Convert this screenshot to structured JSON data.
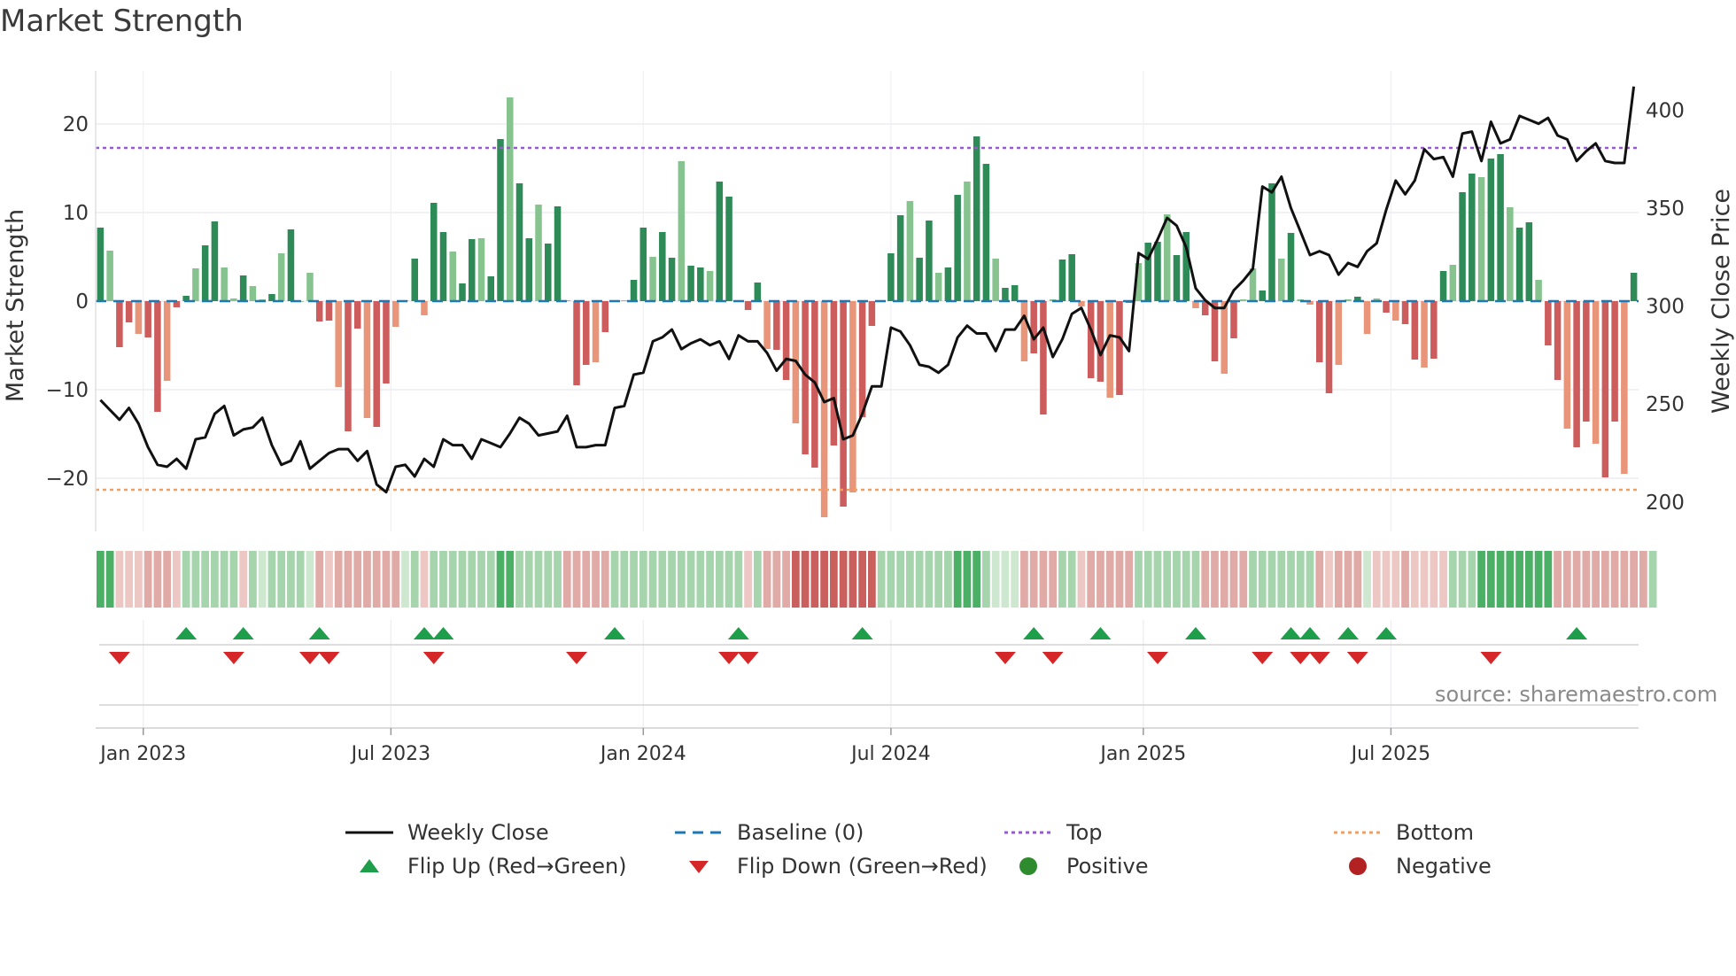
{
  "title": "Market Strength",
  "source_text": "source: sharemaestro.com",
  "colors": {
    "strong_green": "#2e8b57",
    "light_green": "#86c38e",
    "strong_red": "#cd5c5c",
    "light_red": "#e8957a",
    "price_line": "#111111",
    "baseline": "#1f77b4",
    "top_line": "#9b59d0",
    "bottom_line": "#f0a060",
    "flip_up": "#1e9e4a",
    "flip_down": "#d62728",
    "positive": "#2e8b2e",
    "negative": "#b22222"
  },
  "legend": [
    {
      "key": "weekly_close",
      "label": "Weekly Close"
    },
    {
      "key": "baseline",
      "label": "Baseline (0)"
    },
    {
      "key": "top",
      "label": "Top"
    },
    {
      "key": "bottom",
      "label": "Bottom"
    },
    {
      "key": "flip_up",
      "label": "Flip Up (Red→Green)"
    },
    {
      "key": "flip_down",
      "label": "Flip Down (Green→Red)"
    },
    {
      "key": "positive",
      "label": "Positive"
    },
    {
      "key": "negative",
      "label": "Negative"
    }
  ],
  "chart_data": {
    "type": "bar",
    "title": "Market Strength",
    "ylabel": "Market Strength",
    "y2label": "Weekly Close Price",
    "ylim": [
      -26,
      26
    ],
    "y2lim": [
      185,
      420
    ],
    "yticks": [
      20,
      10,
      0,
      -10,
      -20
    ],
    "ytick_labels": [
      "20",
      "10",
      "0",
      "−10",
      "−20"
    ],
    "y2ticks": [
      400,
      350,
      300,
      250,
      200
    ],
    "x_dates": {
      "start": "2022-11-28",
      "weeks": 157
    },
    "xticks": [
      {
        "label": "Jan 2023",
        "week": 5
      },
      {
        "label": "Jul 2023",
        "week": 31
      },
      {
        "label": "Jan 2024",
        "week": 57.5
      },
      {
        "label": "Jul 2024",
        "week": 83.5
      },
      {
        "label": "Jan 2025",
        "week": 110
      },
      {
        "label": "Jul 2025",
        "week": 136
      }
    ],
    "top_level": 17.3,
    "bottom_level": -21.3,
    "strength": [
      8.3,
      5.7,
      -5.2,
      -2.4,
      -3.7,
      -4.1,
      -12.5,
      -9,
      -0.7,
      0.6,
      3.7,
      6.3,
      9,
      3.8,
      0.3,
      2.9,
      1.7,
      0.2,
      0.8,
      5.4,
      8.1,
      0,
      3.2,
      -2.3,
      -2.2,
      -9.7,
      -14.7,
      -3.1,
      -13.2,
      -14.2,
      -9.3,
      -2.9,
      0.1,
      4.8,
      -1.6,
      11.1,
      7.8,
      5.6,
      2,
      7,
      7.1,
      2.8,
      18.3,
      23,
      13.3,
      7.1,
      10.9,
      6.5,
      10.7,
      0.1,
      -9.5,
      -7.2,
      -6.9,
      -3.5,
      0.1,
      0.1,
      2.4,
      8.3,
      5,
      7.8,
      4.9,
      15.8,
      4,
      3.8,
      3.4,
      13.5,
      11.8,
      0.1,
      -1,
      2.1,
      -5.4,
      -5.5,
      -8.9,
      -13.8,
      -17.3,
      -18.8,
      -24.4,
      -16.3,
      -23.2,
      -21.6,
      -13.1,
      -2.8,
      0.1,
      5.4,
      9.7,
      11.3,
      4.9,
      9.1,
      3.2,
      3.8,
      12,
      13.5,
      18.6,
      15.5,
      4.8,
      1.5,
      1.8,
      -6.8,
      -5.9,
      -12.8,
      0.2,
      4.7,
      5.3,
      -0.6,
      -8.7,
      -9.1,
      -10.9,
      -10.6,
      -0.2,
      4.3,
      6.6,
      6.7,
      9.8,
      5.2,
      7.8,
      -0.8,
      -1.6,
      -6.8,
      -8.2,
      -4.2,
      0.2,
      3.7,
      1.2,
      13.3,
      4.8,
      7.7,
      0.2,
      -0.4,
      -6.9,
      -10.4,
      -7.2,
      0.2,
      0.5,
      -3.7,
      0.3,
      -1.3,
      -2.2,
      -2.6,
      -6.6,
      -7.5,
      -6.5,
      3.4,
      4.1,
      12.3,
      14.4,
      14,
      16.1,
      16.6,
      10.6,
      8.3,
      8.9,
      2.4,
      -5,
      -8.9,
      -14.4,
      -16.5,
      -13.6,
      -16.1,
      -19.9,
      -13.6,
      -19.5,
      3.2
    ],
    "weekly_close": [
      252,
      247,
      242,
      248,
      240,
      228,
      219,
      218,
      222,
      217,
      232,
      233,
      245,
      249,
      234,
      237,
      238,
      243,
      229,
      219,
      221,
      231,
      217,
      221,
      225,
      227,
      227,
      221,
      226,
      209,
      205,
      218,
      219,
      213,
      222,
      218,
      232,
      229,
      229,
      222,
      232,
      230,
      228,
      235,
      243,
      240,
      234,
      235,
      236,
      244,
      228,
      228,
      229,
      229,
      248,
      249,
      265,
      266,
      282,
      284,
      288,
      278,
      281,
      283,
      280,
      282,
      273,
      285,
      282,
      282,
      276,
      267,
      273,
      272,
      265,
      261,
      251,
      253,
      232,
      234,
      245,
      259,
      259,
      289,
      287,
      280,
      270,
      269,
      266,
      270,
      284,
      290,
      286,
      286,
      277,
      288,
      288,
      295,
      283,
      289,
      274,
      283,
      296,
      299,
      288,
      275,
      285,
      284,
      277,
      327,
      324,
      334,
      345,
      341,
      330,
      309,
      303,
      299,
      299,
      308,
      313,
      319,
      361,
      358,
      366,
      350,
      338,
      326,
      328,
      326,
      316,
      322,
      320,
      328,
      332,
      349,
      364,
      357,
      364,
      380,
      375,
      376,
      366,
      388,
      389,
      374,
      394,
      383,
      385,
      397,
      395,
      393,
      396,
      387,
      385,
      374,
      379,
      383,
      374,
      373,
      373,
      412
    ],
    "daily_regime": [
      3,
      3,
      -1,
      -1,
      -1,
      -2,
      -2,
      -2,
      -1,
      2,
      2,
      2,
      2,
      2,
      2,
      -1,
      2,
      1,
      2,
      2,
      2,
      2,
      1,
      -2,
      -1,
      -2,
      -2,
      -2,
      -2,
      -2,
      -2,
      -2,
      1,
      2,
      -1,
      2,
      2,
      2,
      2,
      2,
      2,
      2,
      3,
      3,
      2,
      2,
      2,
      2,
      2,
      -2,
      -2,
      -2,
      -2,
      -2,
      2,
      2,
      2,
      2,
      2,
      2,
      2,
      2,
      2,
      2,
      2,
      2,
      2,
      2,
      -1,
      2,
      -2,
      -2,
      -2,
      -3,
      -3,
      -3,
      -3,
      -3,
      -3,
      -3,
      -3,
      -3,
      2,
      2,
      2,
      2,
      2,
      2,
      2,
      2,
      3,
      3,
      3,
      2,
      1,
      1,
      1,
      -2,
      -2,
      -2,
      -2,
      2,
      2,
      -1,
      -2,
      -2,
      -2,
      -2,
      -2,
      2,
      2,
      2,
      2,
      2,
      2,
      2,
      -2,
      -2,
      -2,
      -2,
      -2,
      2,
      2,
      2,
      2,
      2,
      2,
      2,
      -2,
      -1,
      -2,
      -2,
      -2,
      1,
      -1,
      -1,
      -1,
      -2,
      -1,
      -1,
      -1,
      -1,
      2,
      2,
      2,
      3,
      3,
      3,
      3,
      3,
      3,
      3,
      3,
      -2,
      -2,
      -2,
      -2,
      -2,
      -2,
      -2,
      -2,
      -2,
      -2,
      2
    ],
    "flip_up_weeks": [
      9,
      15,
      23,
      34,
      36,
      54,
      67,
      80,
      98,
      105,
      115,
      125,
      127,
      131,
      135,
      155
    ],
    "flip_down_weeks": [
      2,
      14,
      22,
      24,
      35,
      50,
      66,
      68,
      95,
      100,
      111,
      122,
      126,
      128,
      132,
      146
    ]
  }
}
